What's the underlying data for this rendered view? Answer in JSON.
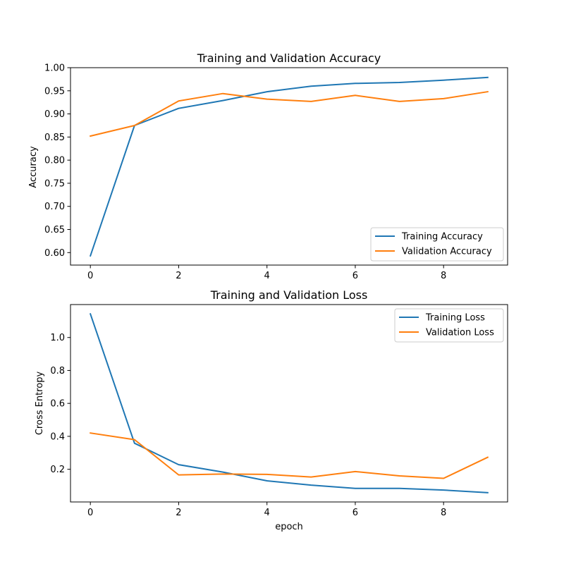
{
  "chart_data": [
    {
      "type": "line",
      "title": "Training and Validation Accuracy",
      "xlabel": "",
      "ylabel": "Accuracy",
      "x": [
        0,
        1,
        2,
        3,
        4,
        5,
        6,
        7,
        8,
        9
      ],
      "xlim": [
        -0.45,
        9.45
      ],
      "ylim": [
        0.573,
        1.0
      ],
      "xticks": [
        0,
        2,
        4,
        6,
        8
      ],
      "yticks": [
        0.6,
        0.65,
        0.7,
        0.75,
        0.8,
        0.85,
        0.9,
        0.95,
        1.0
      ],
      "ytick_decimals": 2,
      "grid": false,
      "legend": "lower right",
      "series": [
        {
          "name": "Training Accuracy",
          "color": "#1f77b4",
          "values": [
            0.593,
            0.875,
            0.912,
            0.929,
            0.948,
            0.96,
            0.966,
            0.968,
            0.973,
            0.979
          ]
        },
        {
          "name": "Validation Accuracy",
          "color": "#ff7f0e",
          "values": [
            0.852,
            0.875,
            0.928,
            0.944,
            0.932,
            0.927,
            0.94,
            0.927,
            0.933,
            0.948
          ]
        }
      ]
    },
    {
      "type": "line",
      "title": "Training and Validation Loss",
      "xlabel": "epoch",
      "ylabel": "Cross Entropy",
      "x": [
        0,
        1,
        2,
        3,
        4,
        5,
        6,
        7,
        8,
        9
      ],
      "xlim": [
        -0.45,
        9.45
      ],
      "ylim": [
        0.0015,
        1.2
      ],
      "xticks": [
        0,
        2,
        4,
        6,
        8
      ],
      "yticks": [
        0.2,
        0.4,
        0.6,
        0.8,
        1.0
      ],
      "ytick_decimals": 1,
      "grid": false,
      "legend": "upper right",
      "series": [
        {
          "name": "Training Loss",
          "color": "#1f77b4",
          "values": [
            1.143,
            0.358,
            0.228,
            0.183,
            0.13,
            0.104,
            0.084,
            0.084,
            0.074,
            0.058
          ]
        },
        {
          "name": "Validation Loss",
          "color": "#ff7f0e",
          "values": [
            0.42,
            0.38,
            0.166,
            0.171,
            0.169,
            0.153,
            0.186,
            0.16,
            0.145,
            0.273
          ]
        }
      ]
    }
  ]
}
